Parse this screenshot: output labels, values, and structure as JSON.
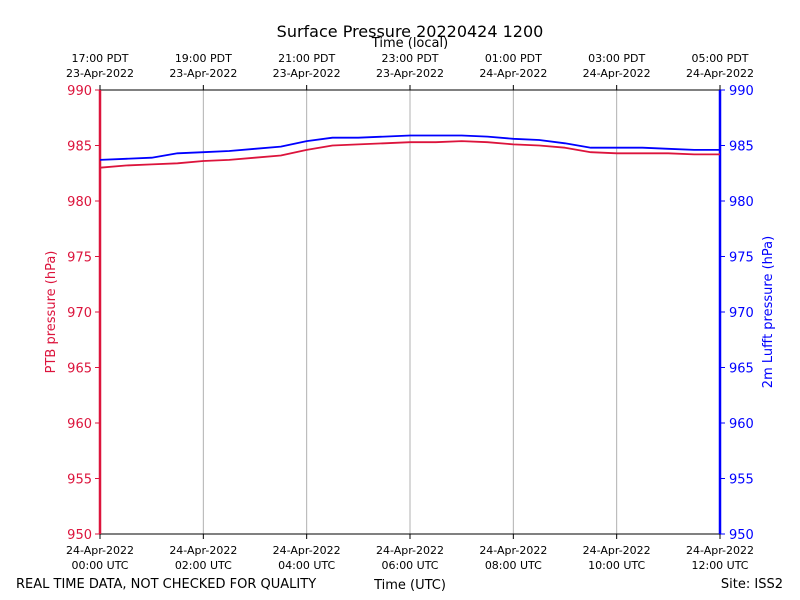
{
  "chart_data": {
    "type": "line",
    "title": "Surface Pressure 20220424 1200",
    "top_xlabel": "Time (local)",
    "xlabel": "Time (UTC)",
    "ylabel_left": "PTB pressure (hPa)",
    "ylabel_right": "2m Lufft pressure (hPa)",
    "ylim": [
      950,
      990
    ],
    "yticks": [
      950,
      955,
      960,
      965,
      970,
      975,
      980,
      985,
      990
    ],
    "xlim_hours": [
      0,
      12
    ],
    "xticks_utc": [
      {
        "h": 0,
        "line1": "24-Apr-2022",
        "line2": "00:00 UTC"
      },
      {
        "h": 2,
        "line1": "24-Apr-2022",
        "line2": "02:00 UTC"
      },
      {
        "h": 4,
        "line1": "24-Apr-2022",
        "line2": "04:00 UTC"
      },
      {
        "h": 6,
        "line1": "24-Apr-2022",
        "line2": "06:00 UTC"
      },
      {
        "h": 8,
        "line1": "24-Apr-2022",
        "line2": "08:00 UTC"
      },
      {
        "h": 10,
        "line1": "24-Apr-2022",
        "line2": "10:00 UTC"
      },
      {
        "h": 12,
        "line1": "24-Apr-2022",
        "line2": "12:00 UTC"
      }
    ],
    "xticks_local": [
      {
        "h": 0,
        "line1": "17:00 PDT",
        "line2": "23-Apr-2022"
      },
      {
        "h": 2,
        "line1": "19:00 PDT",
        "line2": "23-Apr-2022"
      },
      {
        "h": 4,
        "line1": "21:00 PDT",
        "line2": "23-Apr-2022"
      },
      {
        "h": 6,
        "line1": "23:00 PDT",
        "line2": "23-Apr-2022"
      },
      {
        "h": 8,
        "line1": "01:00 PDT",
        "line2": "24-Apr-2022"
      },
      {
        "h": 10,
        "line1": "03:00 PDT",
        "line2": "24-Apr-2022"
      },
      {
        "h": 12,
        "line1": "05:00 PDT",
        "line2": "24-Apr-2022"
      }
    ],
    "grid": "vertical",
    "series": [
      {
        "color": "#dc143c",
        "axis": "left",
        "points": [
          [
            0.0,
            983.0
          ],
          [
            0.5,
            983.2
          ],
          [
            1.0,
            983.3
          ],
          [
            1.5,
            983.4
          ],
          [
            2.0,
            983.6
          ],
          [
            2.5,
            983.7
          ],
          [
            3.0,
            983.9
          ],
          [
            3.5,
            984.1
          ],
          [
            4.0,
            984.6
          ],
          [
            4.5,
            985.0
          ],
          [
            5.0,
            985.1
          ],
          [
            5.5,
            985.2
          ],
          [
            6.0,
            985.3
          ],
          [
            6.5,
            985.3
          ],
          [
            7.0,
            985.4
          ],
          [
            7.5,
            985.3
          ],
          [
            8.0,
            985.1
          ],
          [
            8.5,
            985.0
          ],
          [
            9.0,
            984.8
          ],
          [
            9.5,
            984.4
          ],
          [
            10.0,
            984.3
          ],
          [
            10.5,
            984.3
          ],
          [
            11.0,
            984.3
          ],
          [
            11.5,
            984.2
          ],
          [
            12.0,
            984.2
          ]
        ]
      },
      {
        "color": "#0000ff",
        "axis": "right",
        "points": [
          [
            0.0,
            983.7
          ],
          [
            0.5,
            983.8
          ],
          [
            1.0,
            983.9
          ],
          [
            1.5,
            984.3
          ],
          [
            2.0,
            984.4
          ],
          [
            2.5,
            984.5
          ],
          [
            3.0,
            984.7
          ],
          [
            3.5,
            984.9
          ],
          [
            4.0,
            985.4
          ],
          [
            4.5,
            985.7
          ],
          [
            5.0,
            985.7
          ],
          [
            5.5,
            985.8
          ],
          [
            6.0,
            985.9
          ],
          [
            6.5,
            985.9
          ],
          [
            7.0,
            985.9
          ],
          [
            7.5,
            985.8
          ],
          [
            8.0,
            985.6
          ],
          [
            8.5,
            985.5
          ],
          [
            9.0,
            985.2
          ],
          [
            9.5,
            984.8
          ],
          [
            10.0,
            984.8
          ],
          [
            10.5,
            984.8
          ],
          [
            11.0,
            984.7
          ],
          [
            11.5,
            984.6
          ],
          [
            12.0,
            984.6
          ]
        ]
      }
    ]
  },
  "footer": {
    "left": "REAL TIME DATA, NOT CHECKED FOR QUALITY",
    "right": "Site: ISS2"
  }
}
